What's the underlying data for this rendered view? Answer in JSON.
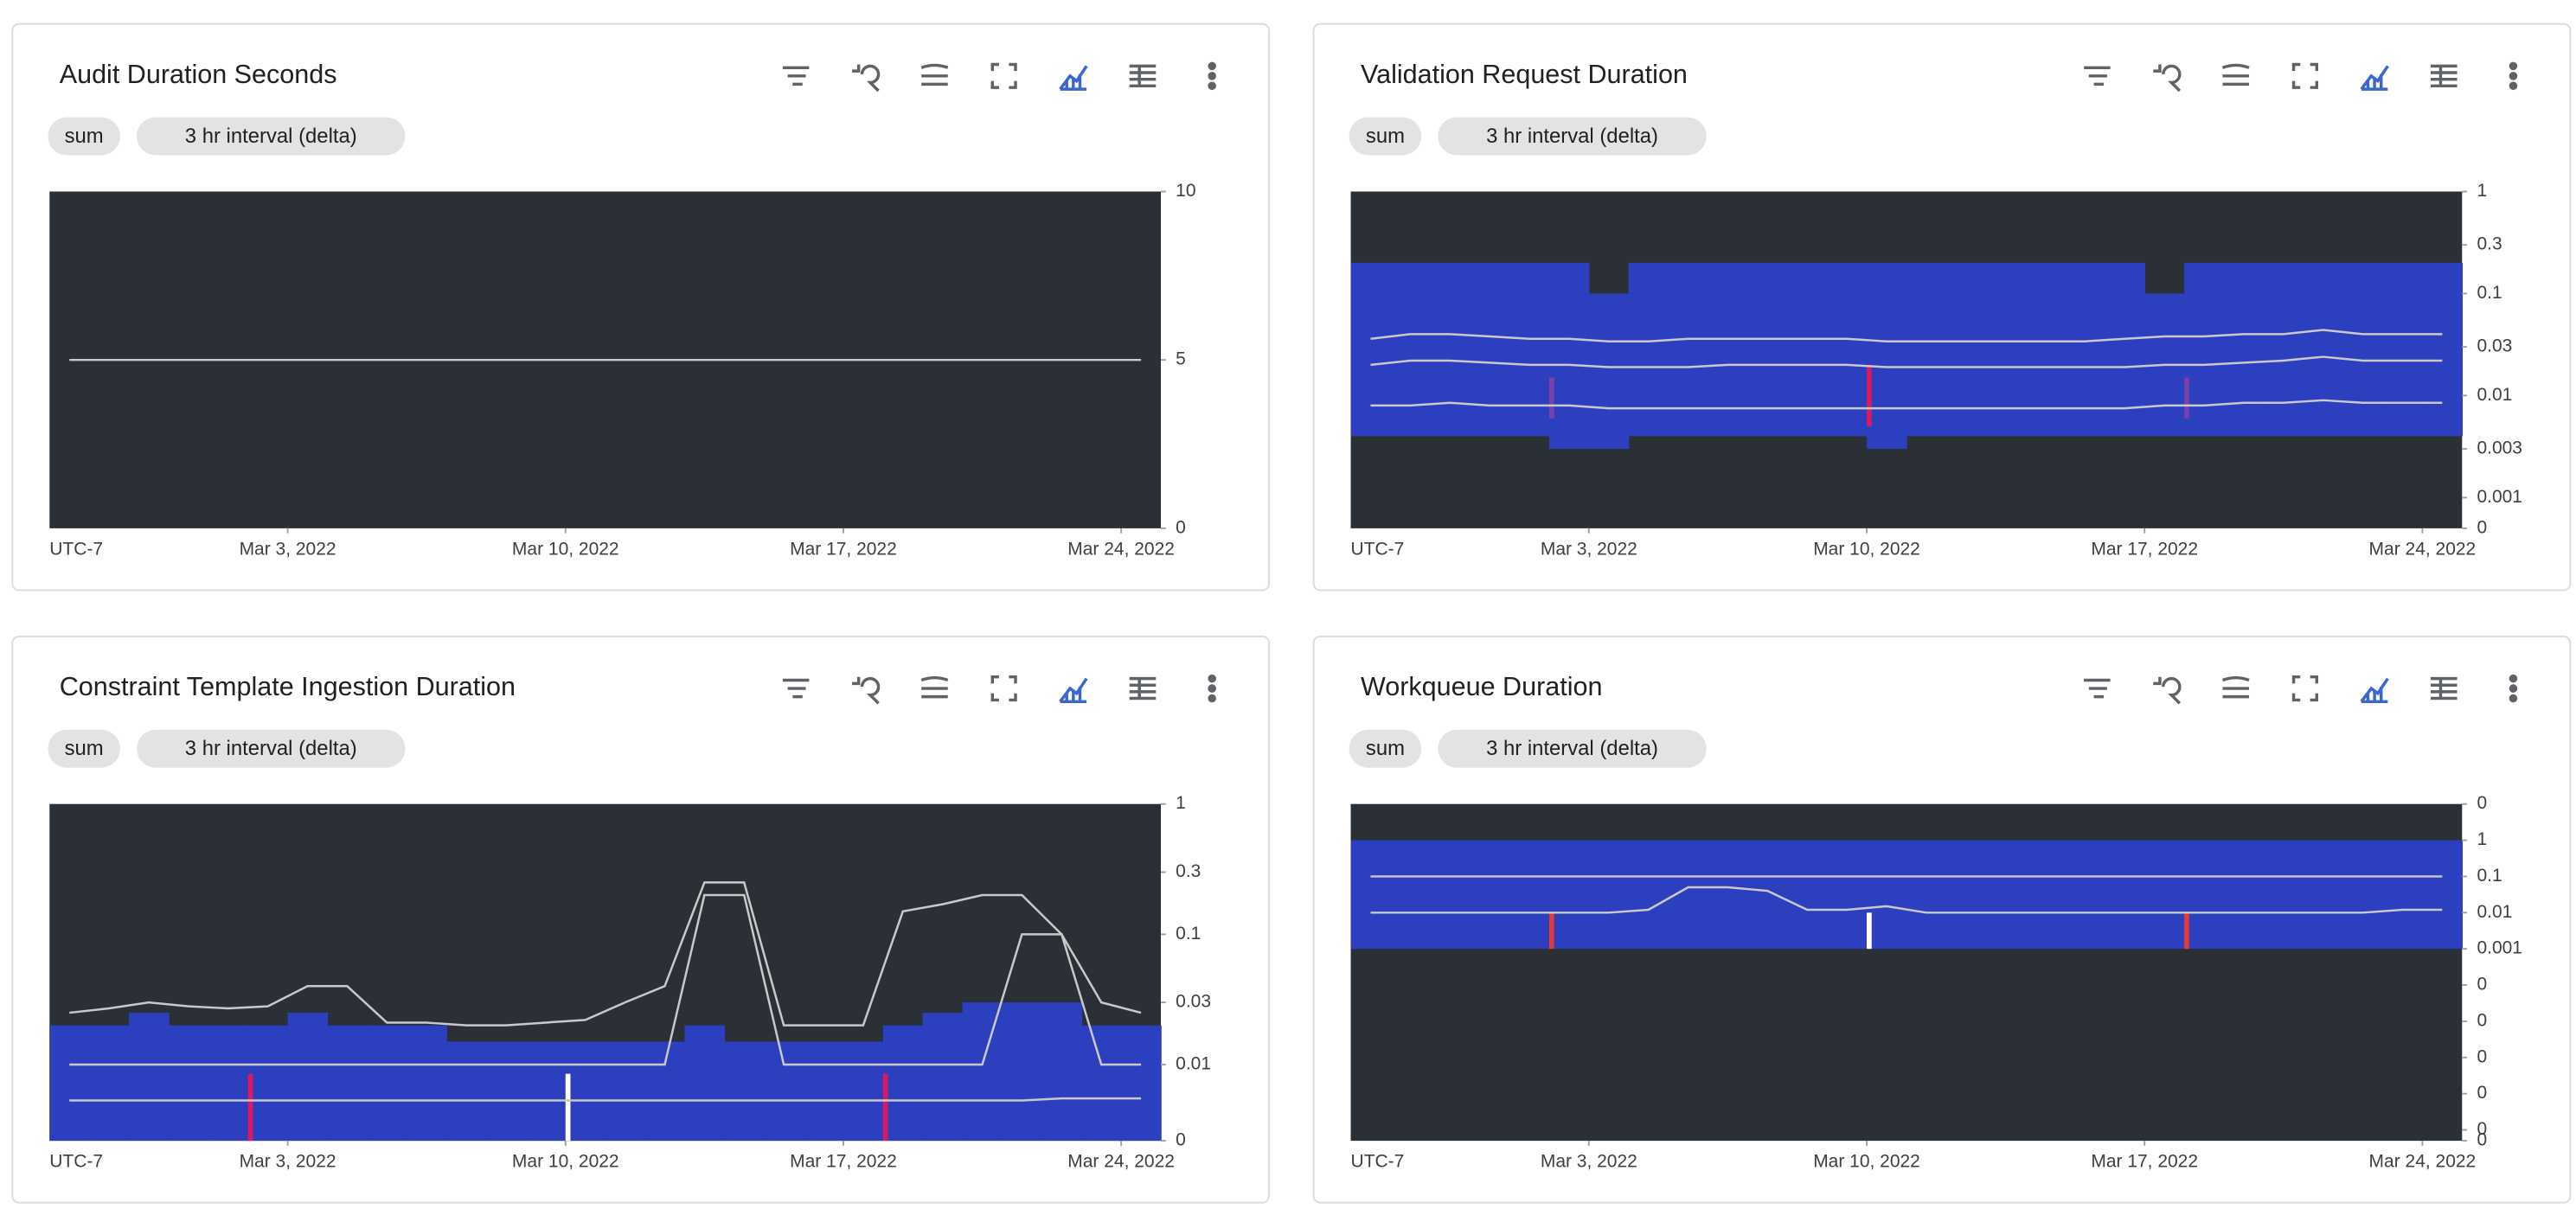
{
  "chart_data": [
    {
      "type": "line",
      "title": "Audit Duration Seconds",
      "chips": [
        "sum",
        "3 hr interval (delta)"
      ],
      "x_label": "UTC-7",
      "xlim": [
        "2022-02-25",
        "2022-03-25"
      ],
      "xticks": [
        {
          "value": "2022-03-03",
          "label": "Mar 3, 2022"
        },
        {
          "value": "2022-03-10",
          "label": "Mar 10, 2022"
        },
        {
          "value": "2022-03-17",
          "label": "Mar 17, 2022"
        },
        {
          "value": "2022-03-24",
          "label": "Mar 24, 2022"
        }
      ],
      "ylim": [
        0,
        10
      ],
      "yticks": [
        0,
        5,
        10
      ],
      "log": false,
      "x": [
        "2022-02-25",
        "2022-02-26",
        "2022-02-27",
        "2022-02-28",
        "2022-03-01",
        "2022-03-02",
        "2022-03-03",
        "2022-03-04",
        "2022-03-05",
        "2022-03-06",
        "2022-03-07",
        "2022-03-08",
        "2022-03-09",
        "2022-03-10",
        "2022-03-11",
        "2022-03-12",
        "2022-03-13",
        "2022-03-14",
        "2022-03-15",
        "2022-03-16",
        "2022-03-17",
        "2022-03-18",
        "2022-03-19",
        "2022-03-20",
        "2022-03-21",
        "2022-03-22",
        "2022-03-23",
        "2022-03-24"
      ],
      "series": [
        {
          "color": "#c9c9c9",
          "values": [
            5,
            5,
            5,
            5,
            5,
            5,
            5,
            5,
            5,
            5,
            5,
            5,
            5,
            5,
            5,
            5,
            5,
            5,
            5,
            5,
            5,
            5,
            5,
            5,
            5,
            5,
            5,
            5
          ]
        }
      ]
    },
    {
      "type": "heatmap",
      "title": "Validation Request Duration",
      "chips": [
        "sum",
        "3 hr interval (delta)"
      ],
      "x_label": "UTC-7",
      "xlim": [
        "2022-02-25",
        "2022-03-25"
      ],
      "xticks": [
        {
          "value": "2022-03-03",
          "label": "Mar 3, 2022"
        },
        {
          "value": "2022-03-10",
          "label": "Mar 10, 2022"
        },
        {
          "value": "2022-03-17",
          "label": "Mar 17, 2022"
        },
        {
          "value": "2022-03-24",
          "label": "Mar 24, 2022"
        }
      ],
      "ylim": [
        0.0005,
        1
      ],
      "log": true,
      "yticks": [
        {
          "value": 0.0005,
          "label": "0"
        },
        0.001,
        0.003,
        0.01,
        0.03,
        0.1,
        0.3,
        1
      ],
      "x": [
        "2022-02-25",
        "2022-02-26",
        "2022-02-27",
        "2022-02-28",
        "2022-03-01",
        "2022-03-02",
        "2022-03-03",
        "2022-03-04",
        "2022-03-05",
        "2022-03-06",
        "2022-03-07",
        "2022-03-08",
        "2022-03-09",
        "2022-03-10",
        "2022-03-11",
        "2022-03-12",
        "2022-03-13",
        "2022-03-14",
        "2022-03-15",
        "2022-03-16",
        "2022-03-17",
        "2022-03-18",
        "2022-03-19",
        "2022-03-20",
        "2022-03-21",
        "2022-03-22",
        "2022-03-23",
        "2022-03-24"
      ],
      "heatmap": {
        "color": "#2b3fbf",
        "low": [
          0.004,
          0.004,
          0.004,
          0.004,
          0.004,
          0.003,
          0.003,
          0.004,
          0.004,
          0.004,
          0.004,
          0.004,
          0.004,
          0.003,
          0.004,
          0.004,
          0.004,
          0.004,
          0.004,
          0.004,
          0.004,
          0.004,
          0.004,
          0.004,
          0.004,
          0.004,
          0.004,
          0.004
        ],
        "high": [
          0.2,
          0.2,
          0.2,
          0.2,
          0.2,
          0.2,
          0.1,
          0.2,
          0.2,
          0.2,
          0.2,
          0.2,
          0.2,
          0.2,
          0.2,
          0.2,
          0.2,
          0.2,
          0.2,
          0.2,
          0.1,
          0.2,
          0.2,
          0.2,
          0.2,
          0.2,
          0.2,
          0.2
        ]
      },
      "spikes": [
        {
          "x": "2022-03-02",
          "low": 0.006,
          "high": 0.015,
          "color": "#7b3fa8"
        },
        {
          "x": "2022-03-10",
          "low": 0.005,
          "high": 0.02,
          "color": "#d81b60"
        },
        {
          "x": "2022-03-18",
          "low": 0.006,
          "high": 0.015,
          "color": "#7b3fa8"
        }
      ],
      "series": [
        {
          "color": "#c9c9c9",
          "values": [
            0.036,
            0.04,
            0.04,
            0.038,
            0.036,
            0.036,
            0.034,
            0.034,
            0.036,
            0.036,
            0.036,
            0.036,
            0.036,
            0.034,
            0.034,
            0.034,
            0.034,
            0.034,
            0.034,
            0.036,
            0.038,
            0.038,
            0.04,
            0.04,
            0.044,
            0.04,
            0.04,
            0.04
          ]
        },
        {
          "color": "#c9c9c9",
          "values": [
            0.02,
            0.022,
            0.022,
            0.021,
            0.02,
            0.02,
            0.019,
            0.019,
            0.019,
            0.02,
            0.02,
            0.02,
            0.02,
            0.019,
            0.019,
            0.019,
            0.019,
            0.019,
            0.019,
            0.019,
            0.02,
            0.02,
            0.021,
            0.022,
            0.024,
            0.022,
            0.022,
            0.022
          ]
        },
        {
          "color": "#c9c9c9",
          "values": [
            0.008,
            0.008,
            0.0085,
            0.008,
            0.008,
            0.008,
            0.0075,
            0.0075,
            0.0075,
            0.0075,
            0.0075,
            0.0075,
            0.0075,
            0.0075,
            0.0075,
            0.0075,
            0.0075,
            0.0075,
            0.0075,
            0.0075,
            0.008,
            0.008,
            0.0085,
            0.0085,
            0.009,
            0.0085,
            0.0085,
            0.0085
          ]
        }
      ]
    },
    {
      "type": "heatmap",
      "title": "Constraint Template Ingestion Duration",
      "chips": [
        "sum",
        "3 hr interval (delta)"
      ],
      "x_label": "UTC-7",
      "xlim": [
        "2022-02-25",
        "2022-03-25"
      ],
      "xticks": [
        {
          "value": "2022-03-03",
          "label": "Mar 3, 2022"
        },
        {
          "value": "2022-03-10",
          "label": "Mar 10, 2022"
        },
        {
          "value": "2022-03-17",
          "label": "Mar 17, 2022"
        },
        {
          "value": "2022-03-24",
          "label": "Mar 24, 2022"
        }
      ],
      "ylim": [
        0.0026,
        1
      ],
      "log": true,
      "yticks": [
        {
          "value": 0.0026,
          "label": "0"
        },
        0.01,
        0.03,
        0.1,
        0.3,
        1
      ],
      "x": [
        "2022-02-25",
        "2022-02-26",
        "2022-02-27",
        "2022-02-28",
        "2022-03-01",
        "2022-03-02",
        "2022-03-03",
        "2022-03-04",
        "2022-03-05",
        "2022-03-06",
        "2022-03-07",
        "2022-03-08",
        "2022-03-09",
        "2022-03-10",
        "2022-03-11",
        "2022-03-12",
        "2022-03-13",
        "2022-03-14",
        "2022-03-15",
        "2022-03-16",
        "2022-03-17",
        "2022-03-18",
        "2022-03-19",
        "2022-03-20",
        "2022-03-21",
        "2022-03-22",
        "2022-03-23",
        "2022-03-24"
      ],
      "heatmap": {
        "color": "#2b3fbf",
        "low": [
          0.0026,
          0.0026,
          0.0026,
          0.0026,
          0.0026,
          0.0026,
          0.0026,
          0.0026,
          0.0026,
          0.0026,
          0.0026,
          0.0026,
          0.0026,
          0.0026,
          0.0026,
          0.0026,
          0.0026,
          0.0026,
          0.0026,
          0.0026,
          0.0026,
          0.0026,
          0.0026,
          0.0026,
          0.0026,
          0.0026,
          0.0026,
          0.0026
        ],
        "high": [
          0.02,
          0.02,
          0.025,
          0.02,
          0.02,
          0.02,
          0.025,
          0.02,
          0.02,
          0.02,
          0.015,
          0.015,
          0.015,
          0.015,
          0.015,
          0.015,
          0.02,
          0.015,
          0.015,
          0.015,
          0.015,
          0.02,
          0.025,
          0.03,
          0.03,
          0.03,
          0.02,
          0.02
        ]
      },
      "spikes": [
        {
          "x": "2022-03-02",
          "low": 0.0026,
          "high": 0.0085,
          "color": "#d81b60"
        },
        {
          "x": "2022-03-10",
          "low": 0.0026,
          "high": 0.0085,
          "color": "#ffffff"
        },
        {
          "x": "2022-03-18",
          "low": 0.0026,
          "high": 0.0085,
          "color": "#d81b60"
        }
      ],
      "series": [
        {
          "color": "#c9c9c9",
          "values": [
            0.025,
            0.027,
            0.03,
            0.028,
            0.027,
            0.028,
            0.04,
            0.04,
            0.021,
            0.021,
            0.02,
            0.02,
            0.021,
            0.022,
            0.03,
            0.04,
            0.25,
            0.25,
            0.02,
            0.02,
            0.02,
            0.15,
            0.17,
            0.2,
            0.2,
            0.1,
            0.03,
            0.025
          ]
        },
        {
          "color": "#c9c9c9",
          "values": [
            0.01,
            0.01,
            0.01,
            0.01,
            0.01,
            0.01,
            0.01,
            0.01,
            0.01,
            0.01,
            0.01,
            0.01,
            0.01,
            0.01,
            0.01,
            0.01,
            0.2,
            0.2,
            0.01,
            0.01,
            0.01,
            0.01,
            0.01,
            0.01,
            0.1,
            0.1,
            0.01,
            0.01
          ]
        },
        {
          "color": "#c9c9c9",
          "values": [
            0.0053,
            0.0053,
            0.0053,
            0.0053,
            0.0053,
            0.0053,
            0.0053,
            0.0053,
            0.0053,
            0.0053,
            0.0053,
            0.0053,
            0.0053,
            0.0053,
            0.0053,
            0.0053,
            0.0053,
            0.0053,
            0.0053,
            0.0053,
            0.0053,
            0.0053,
            0.0053,
            0.0053,
            0.0053,
            0.0055,
            0.0055,
            0.0055
          ]
        }
      ]
    },
    {
      "type": "heatmap",
      "title": "Workqueue Duration",
      "chips": [
        "sum",
        "3 hr interval (delta)"
      ],
      "x_label": "UTC-7",
      "xlim": [
        "2022-02-25",
        "2022-03-25"
      ],
      "xticks": [
        {
          "value": "2022-03-03",
          "label": "Mar 3, 2022"
        },
        {
          "value": "2022-03-10",
          "label": "Mar 10, 2022"
        },
        {
          "value": "2022-03-17",
          "label": "Mar 17, 2022"
        },
        {
          "value": "2022-03-24",
          "label": "Mar 24, 2022"
        }
      ],
      "ylim": [
        5e-09,
        10
      ],
      "log": true,
      "yticks": [
        {
          "value": 5e-09,
          "label": "0"
        },
        {
          "value": 1e-08,
          "label": "0"
        },
        {
          "value": 1e-07,
          "label": "0"
        },
        {
          "value": 1e-06,
          "label": "0"
        },
        {
          "value": 1e-05,
          "label": "0"
        },
        {
          "value": 0.0001,
          "label": "0"
        },
        0.001,
        0.01,
        0.1,
        1,
        {
          "value": 10,
          "label": "0"
        }
      ],
      "x": [
        "2022-02-25",
        "2022-02-26",
        "2022-02-27",
        "2022-02-28",
        "2022-03-01",
        "2022-03-02",
        "2022-03-03",
        "2022-03-04",
        "2022-03-05",
        "2022-03-06",
        "2022-03-07",
        "2022-03-08",
        "2022-03-09",
        "2022-03-10",
        "2022-03-11",
        "2022-03-12",
        "2022-03-13",
        "2022-03-14",
        "2022-03-15",
        "2022-03-16",
        "2022-03-17",
        "2022-03-18",
        "2022-03-19",
        "2022-03-20",
        "2022-03-21",
        "2022-03-22",
        "2022-03-23",
        "2022-03-24"
      ],
      "heatmap": {
        "color": "#2b3fbf",
        "low": [
          0.001,
          0.001,
          0.001,
          0.001,
          0.001,
          0.001,
          0.001,
          0.001,
          0.001,
          0.001,
          0.001,
          0.001,
          0.001,
          0.001,
          0.001,
          0.001,
          0.001,
          0.001,
          0.001,
          0.001,
          0.001,
          0.001,
          0.001,
          0.001,
          0.001,
          0.001,
          0.001,
          0.001
        ],
        "high": [
          1,
          1,
          1,
          1,
          1,
          1,
          1,
          1,
          1,
          1,
          1,
          1,
          1,
          1,
          1,
          1,
          1,
          1,
          1,
          1,
          1,
          1,
          1,
          1,
          1,
          1,
          1,
          1
        ]
      },
      "spikes": [
        {
          "x": "2022-03-02",
          "low": 0.001,
          "high": 0.01,
          "color": "#e53935"
        },
        {
          "x": "2022-03-10",
          "low": 0.001,
          "high": 0.01,
          "color": "#ffffff"
        },
        {
          "x": "2022-03-18",
          "low": 0.001,
          "high": 0.01,
          "color": "#e53935"
        }
      ],
      "series": [
        {
          "color": "#c9c9c9",
          "values": [
            0.1,
            0.1,
            0.1,
            0.1,
            0.1,
            0.1,
            0.1,
            0.1,
            0.1,
            0.1,
            0.1,
            0.1,
            0.1,
            0.1,
            0.1,
            0.1,
            0.1,
            0.1,
            0.1,
            0.1,
            0.1,
            0.1,
            0.1,
            0.1,
            0.1,
            0.1,
            0.1,
            0.1
          ]
        },
        {
          "color": "#c9c9c9",
          "values": [
            0.01,
            0.01,
            0.01,
            0.01,
            0.01,
            0.01,
            0.01,
            0.012,
            0.05,
            0.05,
            0.04,
            0.012,
            0.012,
            0.015,
            0.01,
            0.01,
            0.01,
            0.01,
            0.01,
            0.01,
            0.01,
            0.01,
            0.01,
            0.01,
            0.01,
            0.01,
            0.012,
            0.012
          ]
        }
      ]
    }
  ]
}
